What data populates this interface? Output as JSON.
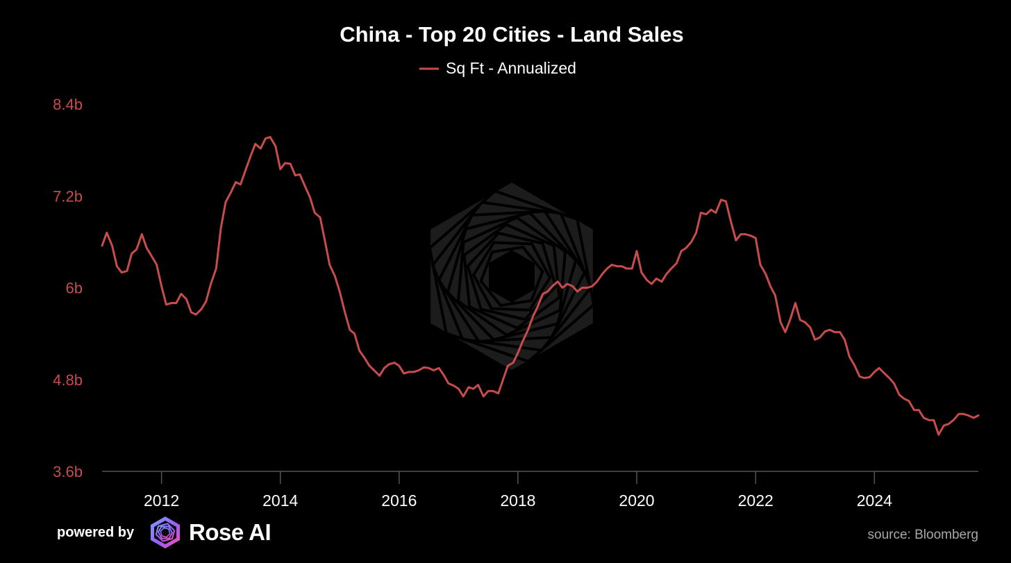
{
  "chart_data": {
    "type": "line",
    "title": "China - Top 20 Cities - Land Sales",
    "legend": {
      "label": "Sq Ft - Annualized",
      "placement": "top-center"
    },
    "xlabel": "",
    "ylabel": "",
    "xlim": [
      2011.0,
      2025.75
    ],
    "ylim": [
      3.6,
      8.4
    ],
    "x_ticks": [
      2012,
      2014,
      2016,
      2018,
      2020,
      2022,
      2024
    ],
    "x_tick_labels": [
      "2012",
      "2014",
      "2016",
      "2018",
      "2020",
      "2022",
      "2024"
    ],
    "y_ticks": [
      3.6,
      4.8,
      6.0,
      7.2,
      8.4
    ],
    "y_tick_labels": [
      "3.6b",
      "4.8b",
      "6b",
      "7.2b",
      "8.4b"
    ],
    "grid": false,
    "series": [
      {
        "name": "Sq Ft - Annualized",
        "color": "#c94c4c",
        "unit": "billion sq ft",
        "points": [
          [
            2011.0,
            6.55
          ],
          [
            2011.08,
            6.72
          ],
          [
            2011.17,
            6.55
          ],
          [
            2011.25,
            6.28
          ],
          [
            2011.33,
            6.2
          ],
          [
            2011.42,
            6.22
          ],
          [
            2011.5,
            6.45
          ],
          [
            2011.58,
            6.5
          ],
          [
            2011.67,
            6.7
          ],
          [
            2011.75,
            6.52
          ],
          [
            2011.83,
            6.42
          ],
          [
            2011.92,
            6.3
          ],
          [
            2012.0,
            6.02
          ],
          [
            2012.08,
            5.78
          ],
          [
            2012.17,
            5.8
          ],
          [
            2012.25,
            5.8
          ],
          [
            2012.33,
            5.92
          ],
          [
            2012.42,
            5.85
          ],
          [
            2012.5,
            5.68
          ],
          [
            2012.58,
            5.65
          ],
          [
            2012.67,
            5.72
          ],
          [
            2012.75,
            5.82
          ],
          [
            2012.83,
            6.05
          ],
          [
            2012.92,
            6.25
          ],
          [
            2013.0,
            6.78
          ],
          [
            2013.08,
            7.12
          ],
          [
            2013.17,
            7.25
          ],
          [
            2013.25,
            7.38
          ],
          [
            2013.33,
            7.35
          ],
          [
            2013.42,
            7.55
          ],
          [
            2013.5,
            7.72
          ],
          [
            2013.58,
            7.88
          ],
          [
            2013.67,
            7.82
          ],
          [
            2013.75,
            7.95
          ],
          [
            2013.83,
            7.97
          ],
          [
            2013.92,
            7.85
          ],
          [
            2014.0,
            7.55
          ],
          [
            2014.08,
            7.63
          ],
          [
            2014.17,
            7.62
          ],
          [
            2014.25,
            7.47
          ],
          [
            2014.33,
            7.48
          ],
          [
            2014.42,
            7.32
          ],
          [
            2014.5,
            7.18
          ],
          [
            2014.58,
            6.98
          ],
          [
            2014.67,
            6.92
          ],
          [
            2014.75,
            6.62
          ],
          [
            2014.83,
            6.3
          ],
          [
            2014.92,
            6.15
          ],
          [
            2015.0,
            5.95
          ],
          [
            2015.08,
            5.7
          ],
          [
            2015.17,
            5.45
          ],
          [
            2015.25,
            5.4
          ],
          [
            2015.33,
            5.18
          ],
          [
            2015.42,
            5.08
          ],
          [
            2015.5,
            4.98
          ],
          [
            2015.58,
            4.92
          ],
          [
            2015.67,
            4.85
          ],
          [
            2015.75,
            4.95
          ],
          [
            2015.83,
            5.0
          ],
          [
            2015.92,
            5.02
          ],
          [
            2016.0,
            4.98
          ],
          [
            2016.08,
            4.88
          ],
          [
            2016.17,
            4.9
          ],
          [
            2016.25,
            4.9
          ],
          [
            2016.33,
            4.92
          ],
          [
            2016.42,
            4.96
          ],
          [
            2016.5,
            4.95
          ],
          [
            2016.58,
            4.92
          ],
          [
            2016.67,
            4.95
          ],
          [
            2016.75,
            4.86
          ],
          [
            2016.83,
            4.75
          ],
          [
            2016.92,
            4.72
          ],
          [
            2017.0,
            4.68
          ],
          [
            2017.08,
            4.58
          ],
          [
            2017.17,
            4.7
          ],
          [
            2017.25,
            4.68
          ],
          [
            2017.33,
            4.73
          ],
          [
            2017.42,
            4.58
          ],
          [
            2017.5,
            4.65
          ],
          [
            2017.58,
            4.65
          ],
          [
            2017.67,
            4.62
          ],
          [
            2017.75,
            4.8
          ],
          [
            2017.83,
            4.98
          ],
          [
            2017.92,
            5.02
          ],
          [
            2018.0,
            5.15
          ],
          [
            2018.08,
            5.3
          ],
          [
            2018.17,
            5.45
          ],
          [
            2018.25,
            5.62
          ],
          [
            2018.33,
            5.75
          ],
          [
            2018.42,
            5.92
          ],
          [
            2018.5,
            5.95
          ],
          [
            2018.58,
            6.02
          ],
          [
            2018.67,
            6.08
          ],
          [
            2018.75,
            6.0
          ],
          [
            2018.83,
            6.05
          ],
          [
            2018.92,
            6.02
          ],
          [
            2019.0,
            5.95
          ],
          [
            2019.08,
            6.0
          ],
          [
            2019.17,
            6.0
          ],
          [
            2019.25,
            6.02
          ],
          [
            2019.33,
            6.08
          ],
          [
            2019.42,
            6.18
          ],
          [
            2019.5,
            6.25
          ],
          [
            2019.58,
            6.3
          ],
          [
            2019.67,
            6.28
          ],
          [
            2019.75,
            6.28
          ],
          [
            2019.83,
            6.25
          ],
          [
            2019.92,
            6.25
          ],
          [
            2020.0,
            6.48
          ],
          [
            2020.08,
            6.2
          ],
          [
            2020.17,
            6.1
          ],
          [
            2020.25,
            6.05
          ],
          [
            2020.33,
            6.12
          ],
          [
            2020.42,
            6.08
          ],
          [
            2020.5,
            6.18
          ],
          [
            2020.58,
            6.25
          ],
          [
            2020.67,
            6.32
          ],
          [
            2020.75,
            6.48
          ],
          [
            2020.83,
            6.52
          ],
          [
            2020.92,
            6.6
          ],
          [
            2021.0,
            6.72
          ],
          [
            2021.08,
            6.98
          ],
          [
            2021.17,
            6.96
          ],
          [
            2021.25,
            7.02
          ],
          [
            2021.33,
            6.98
          ],
          [
            2021.42,
            7.15
          ],
          [
            2021.5,
            7.13
          ],
          [
            2021.58,
            6.88
          ],
          [
            2021.67,
            6.62
          ],
          [
            2021.75,
            6.7
          ],
          [
            2021.83,
            6.7
          ],
          [
            2021.92,
            6.68
          ],
          [
            2022.0,
            6.65
          ],
          [
            2022.08,
            6.3
          ],
          [
            2022.17,
            6.18
          ],
          [
            2022.25,
            6.02
          ],
          [
            2022.33,
            5.9
          ],
          [
            2022.42,
            5.55
          ],
          [
            2022.5,
            5.42
          ],
          [
            2022.58,
            5.58
          ],
          [
            2022.67,
            5.8
          ],
          [
            2022.75,
            5.58
          ],
          [
            2022.83,
            5.55
          ],
          [
            2022.92,
            5.48
          ],
          [
            2023.0,
            5.32
          ],
          [
            2023.08,
            5.35
          ],
          [
            2023.17,
            5.43
          ],
          [
            2023.25,
            5.45
          ],
          [
            2023.33,
            5.42
          ],
          [
            2023.42,
            5.42
          ],
          [
            2023.5,
            5.32
          ],
          [
            2023.58,
            5.1
          ],
          [
            2023.67,
            4.98
          ],
          [
            2023.75,
            4.84
          ],
          [
            2023.83,
            4.82
          ],
          [
            2023.92,
            4.83
          ],
          [
            2024.0,
            4.9
          ],
          [
            2024.08,
            4.95
          ],
          [
            2024.17,
            4.88
          ],
          [
            2024.25,
            4.82
          ],
          [
            2024.33,
            4.75
          ],
          [
            2024.42,
            4.6
          ],
          [
            2024.5,
            4.55
          ],
          [
            2024.58,
            4.52
          ],
          [
            2024.67,
            4.4
          ],
          [
            2024.75,
            4.4
          ],
          [
            2024.83,
            4.3
          ],
          [
            2024.92,
            4.27
          ],
          [
            2025.0,
            4.27
          ],
          [
            2025.08,
            4.08
          ],
          [
            2025.17,
            4.2
          ],
          [
            2025.25,
            4.22
          ],
          [
            2025.33,
            4.27
          ],
          [
            2025.42,
            4.35
          ],
          [
            2025.5,
            4.35
          ],
          [
            2025.58,
            4.33
          ],
          [
            2025.67,
            4.3
          ],
          [
            2025.75,
            4.33
          ]
        ]
      }
    ]
  },
  "colors": {
    "background": "#000000",
    "series": "#c94c4c",
    "y_tick_label": "#c94c4c",
    "x_tick_label": "#ffffff",
    "axis_line": "#555555",
    "watermark": "#2e2e2e",
    "source_text": "#a8a8a8"
  },
  "watermark": {
    "icon": "rose-ai-hexagon-icon"
  },
  "footer": {
    "powered_by": "powered by",
    "brand_icon": "rose-ai-logo-icon",
    "brand": "Rose AI",
    "source": "source: Bloomberg"
  }
}
